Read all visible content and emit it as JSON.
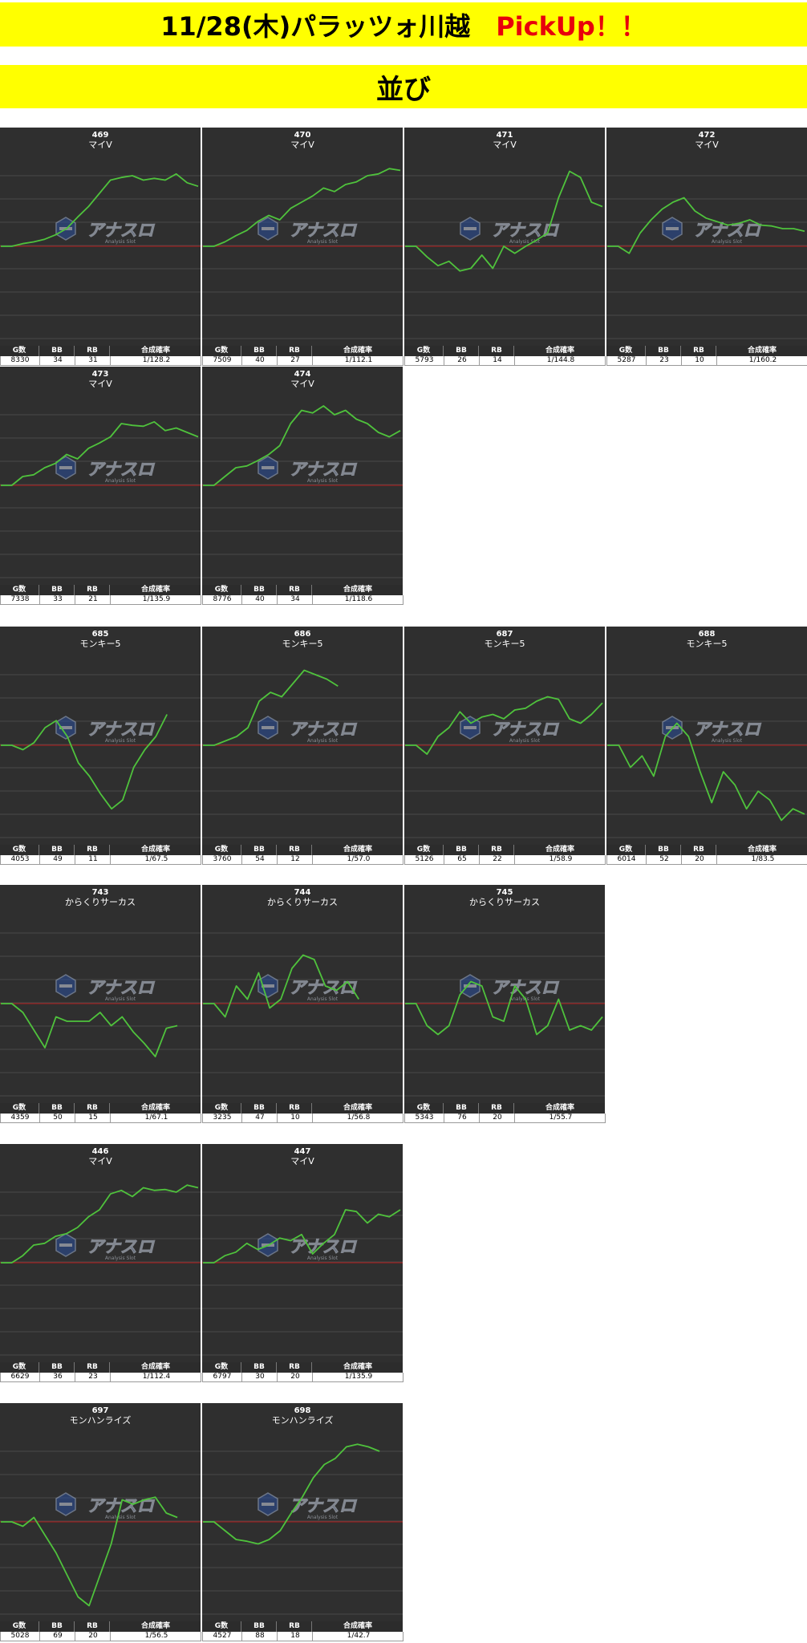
{
  "header": {
    "title": "11/28(木)パラッツォ川越",
    "pickup": "PickUp！！",
    "subtitle": "並び"
  },
  "stat_labels": {
    "games": "G数",
    "bb": "BB",
    "rb": "RB",
    "rate": "合成確率"
  },
  "colors": {
    "banner": "#ffff00",
    "pickup": "#e8000b",
    "chart_bg": "#2f2f2f",
    "line": "#4fc23c",
    "baseline": "#b21a1a",
    "grid": "#4a4a4a"
  },
  "watermark": {
    "brand": "アナスロ",
    "sub": "Analysis Slot"
  },
  "chart_data": [
    {
      "type": "line",
      "title": "469",
      "subtitle": "マイV",
      "games": "8330",
      "bb": "34",
      "rb": "31",
      "rate": "1/128.2",
      "y": [
        0,
        0,
        0.03,
        0.05,
        0.08,
        0.13,
        0.2,
        0.33,
        0.45,
        0.6,
        0.75,
        0.78,
        0.8,
        0.75,
        0.77,
        0.75,
        0.82,
        0.72,
        0.68
      ]
    },
    {
      "type": "line",
      "title": "470",
      "subtitle": "マイV",
      "games": "7509",
      "bb": "40",
      "rb": "27",
      "rate": "1/112.1",
      "y": [
        0,
        0,
        0.05,
        0.12,
        0.18,
        0.28,
        0.35,
        0.3,
        0.43,
        0.5,
        0.57,
        0.66,
        0.62,
        0.7,
        0.73,
        0.8,
        0.82,
        0.88,
        0.86
      ]
    },
    {
      "type": "line",
      "title": "471",
      "subtitle": "マイV",
      "games": "5793",
      "bb": "26",
      "rb": "14",
      "rate": "1/144.8",
      "y": [
        0,
        0,
        -0.12,
        -0.22,
        -0.17,
        -0.28,
        -0.25,
        -0.1,
        -0.25,
        0,
        -0.08,
        0,
        0.07,
        0.15,
        0.55,
        0.85,
        0.78,
        0.5,
        0.45
      ]
    },
    {
      "type": "line",
      "title": "472",
      "subtitle": "マイV",
      "games": "5287",
      "bb": "23",
      "rb": "10",
      "rate": "1/160.2",
      "y": [
        0,
        0,
        -0.08,
        0.15,
        0.3,
        0.42,
        0.5,
        0.55,
        0.4,
        0.32,
        0.28,
        0.24,
        0.26,
        0.3,
        0.24,
        0.23,
        0.2,
        0.2,
        0.17
      ]
    },
    {
      "type": "line",
      "title": "473",
      "subtitle": "マイV",
      "games": "7338",
      "bb": "33",
      "rb": "21",
      "rate": "1/135.9",
      "y": [
        0,
        0,
        0.1,
        0.12,
        0.2,
        0.25,
        0.35,
        0.3,
        0.42,
        0.48,
        0.55,
        0.7,
        0.68,
        0.67,
        0.72,
        0.62,
        0.65,
        0.6,
        0.55
      ]
    },
    {
      "type": "line",
      "title": "474",
      "subtitle": "マイV",
      "games": "8776",
      "bb": "40",
      "rb": "34",
      "rate": "1/118.6",
      "y": [
        0,
        0,
        0.1,
        0.2,
        0.22,
        0.28,
        0.35,
        0.45,
        0.7,
        0.85,
        0.82,
        0.9,
        0.8,
        0.85,
        0.75,
        0.7,
        0.6,
        0.55,
        0.62
      ]
    },
    {
      "type": "line",
      "title": "685",
      "subtitle": "モンキー5",
      "games": "4053",
      "bb": "49",
      "rb": "11",
      "rate": "1/67.5",
      "y": [
        0,
        0,
        -0.05,
        0.03,
        0.2,
        0.28,
        0.1,
        -0.2,
        -0.35,
        -0.55,
        -0.72,
        -0.62,
        -0.25,
        -0.05,
        0.1,
        0.35
      ]
    },
    {
      "type": "line",
      "title": "686",
      "subtitle": "モンキー5",
      "games": "3760",
      "bb": "54",
      "rb": "12",
      "rate": "1/57.0",
      "y": [
        0,
        0,
        0.05,
        0.1,
        0.2,
        0.5,
        0.6,
        0.55,
        0.7,
        0.85,
        0.8,
        0.75,
        0.67
      ]
    },
    {
      "type": "line",
      "title": "687",
      "subtitle": "モンキー5",
      "games": "5126",
      "bb": "65",
      "rb": "22",
      "rate": "1/58.9",
      "y": [
        0,
        0,
        -0.1,
        0.1,
        0.2,
        0.38,
        0.25,
        0.32,
        0.35,
        0.3,
        0.4,
        0.42,
        0.5,
        0.55,
        0.52,
        0.3,
        0.25,
        0.35,
        0.48
      ]
    },
    {
      "type": "line",
      "title": "688",
      "subtitle": "モンキー5",
      "games": "6014",
      "bb": "52",
      "rb": "20",
      "rate": "1/83.5",
      "y": [
        0,
        0,
        -0.25,
        -0.12,
        -0.35,
        0.1,
        0.25,
        0.1,
        -0.3,
        -0.65,
        -0.3,
        -0.45,
        -0.72,
        -0.52,
        -0.62,
        -0.85,
        -0.72,
        -0.78
      ]
    },
    {
      "type": "line",
      "title": "743",
      "subtitle": "からくりサーカス",
      "games": "4359",
      "bb": "50",
      "rb": "15",
      "rate": "1/67.1",
      "y": [
        0,
        0,
        -0.1,
        -0.3,
        -0.5,
        -0.15,
        -0.2,
        -0.2,
        -0.2,
        -0.1,
        -0.25,
        -0.15,
        -0.32,
        -0.45,
        -0.6,
        -0.28,
        -0.25
      ]
    },
    {
      "type": "line",
      "title": "744",
      "subtitle": "からくりサーカス",
      "games": "3235",
      "bb": "47",
      "rb": "10",
      "rate": "1/56.8",
      "y": [
        0,
        0,
        -0.15,
        0.2,
        0.05,
        0.35,
        -0.05,
        0.05,
        0.4,
        0.55,
        0.5,
        0.2,
        0.15,
        0.25,
        0.05
      ]
    },
    {
      "type": "line",
      "title": "745",
      "subtitle": "からくりサーカス",
      "games": "5343",
      "bb": "76",
      "rb": "20",
      "rate": "1/55.7",
      "y": [
        0,
        0,
        -0.25,
        -0.35,
        -0.25,
        0.1,
        0.25,
        0.2,
        -0.15,
        -0.2,
        0.2,
        0.05,
        -0.35,
        -0.25,
        0.05,
        -0.3,
        -0.25,
        -0.3,
        -0.15
      ]
    },
    {
      "type": "line",
      "title": "446",
      "subtitle": "マイV",
      "games": "6629",
      "bb": "36",
      "rb": "23",
      "rate": "1/112.4",
      "y": [
        0,
        0,
        0.08,
        0.2,
        0.22,
        0.3,
        0.33,
        0.4,
        0.52,
        0.6,
        0.78,
        0.82,
        0.75,
        0.85,
        0.82,
        0.83,
        0.8,
        0.88,
        0.85
      ]
    },
    {
      "type": "line",
      "title": "447",
      "subtitle": "マイV",
      "games": "6797",
      "bb": "30",
      "rb": "20",
      "rate": "1/135.9",
      "y": [
        0,
        0,
        0.08,
        0.12,
        0.22,
        0.15,
        0.2,
        0.28,
        0.25,
        0.32,
        0.1,
        0.22,
        0.32,
        0.6,
        0.58,
        0.45,
        0.55,
        0.52,
        0.6
      ]
    },
    {
      "type": "line",
      "title": "697",
      "subtitle": "モンハンライズ",
      "games": "5028",
      "bb": "69",
      "rb": "20",
      "rate": "1/56.5",
      "y": [
        0,
        0,
        -0.05,
        0.05,
        -0.15,
        -0.35,
        -0.6,
        -0.85,
        -0.95,
        -0.6,
        -0.25,
        0.25,
        0.2,
        0.25,
        0.28,
        0.1,
        0.05
      ]
    },
    {
      "type": "line",
      "title": "698",
      "subtitle": "モンハンライズ",
      "games": "4527",
      "bb": "88",
      "rb": "18",
      "rate": "1/42.7",
      "y": [
        0,
        0,
        -0.1,
        -0.2,
        -0.22,
        -0.25,
        -0.2,
        -0.1,
        0.1,
        0.28,
        0.5,
        0.65,
        0.72,
        0.85,
        0.88,
        0.85,
        0.8
      ]
    }
  ]
}
